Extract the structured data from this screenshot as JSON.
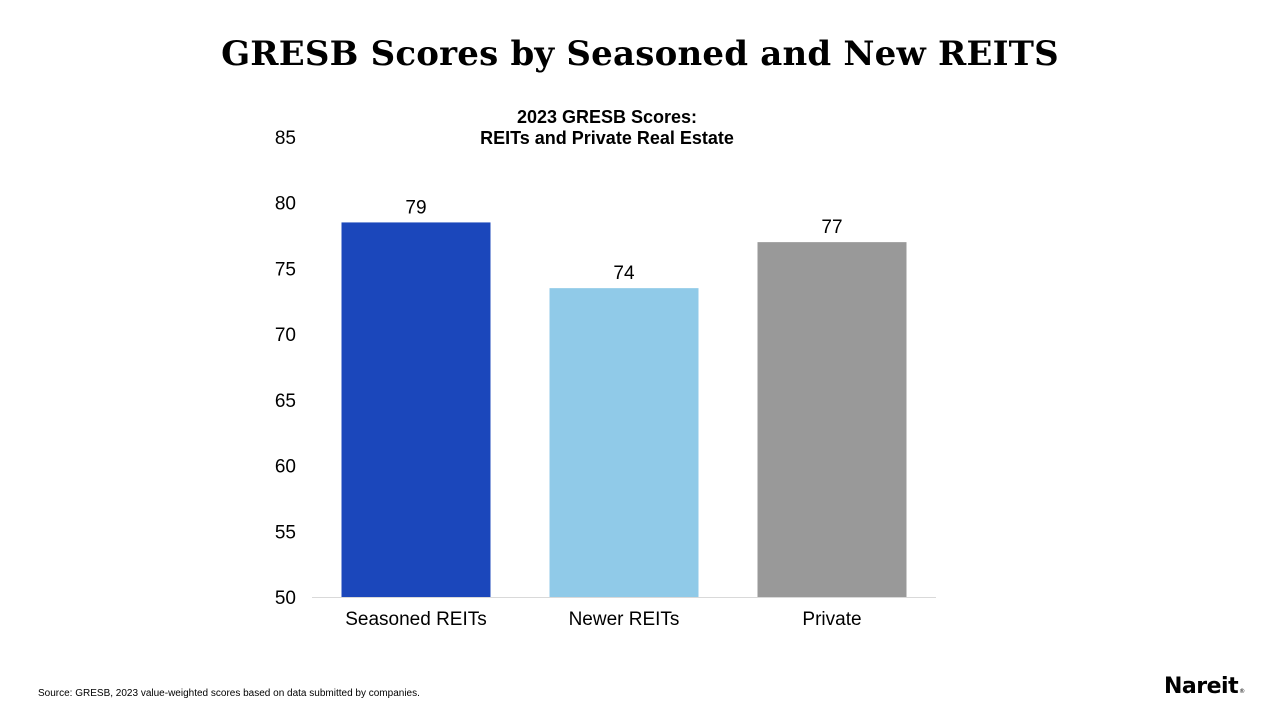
{
  "slide": {
    "title": "GRESB Scores by Seasoned and New REITS",
    "source": "Source: GRESB, 2023 value-weighted scores based on data submitted by companies.",
    "logo_text": "Nareit",
    "logo_mark": "®"
  },
  "chart_data": {
    "type": "bar",
    "title_lines": [
      "2023 GRESB Scores:",
      "REITs and Private Real Estate"
    ],
    "categories": [
      "Seasoned REITs",
      "Newer REITs",
      "Private"
    ],
    "values": [
      78.5,
      73.5,
      77
    ],
    "value_labels": [
      "79",
      "74",
      "77"
    ],
    "colors": [
      "#1b47bb",
      "#90cae8",
      "#999999"
    ],
    "ylim": [
      50,
      85
    ],
    "yticks": [
      50,
      55,
      60,
      65,
      70,
      75,
      80,
      85
    ],
    "xlabel": "",
    "ylabel": "",
    "grid": false,
    "legend": false
  }
}
